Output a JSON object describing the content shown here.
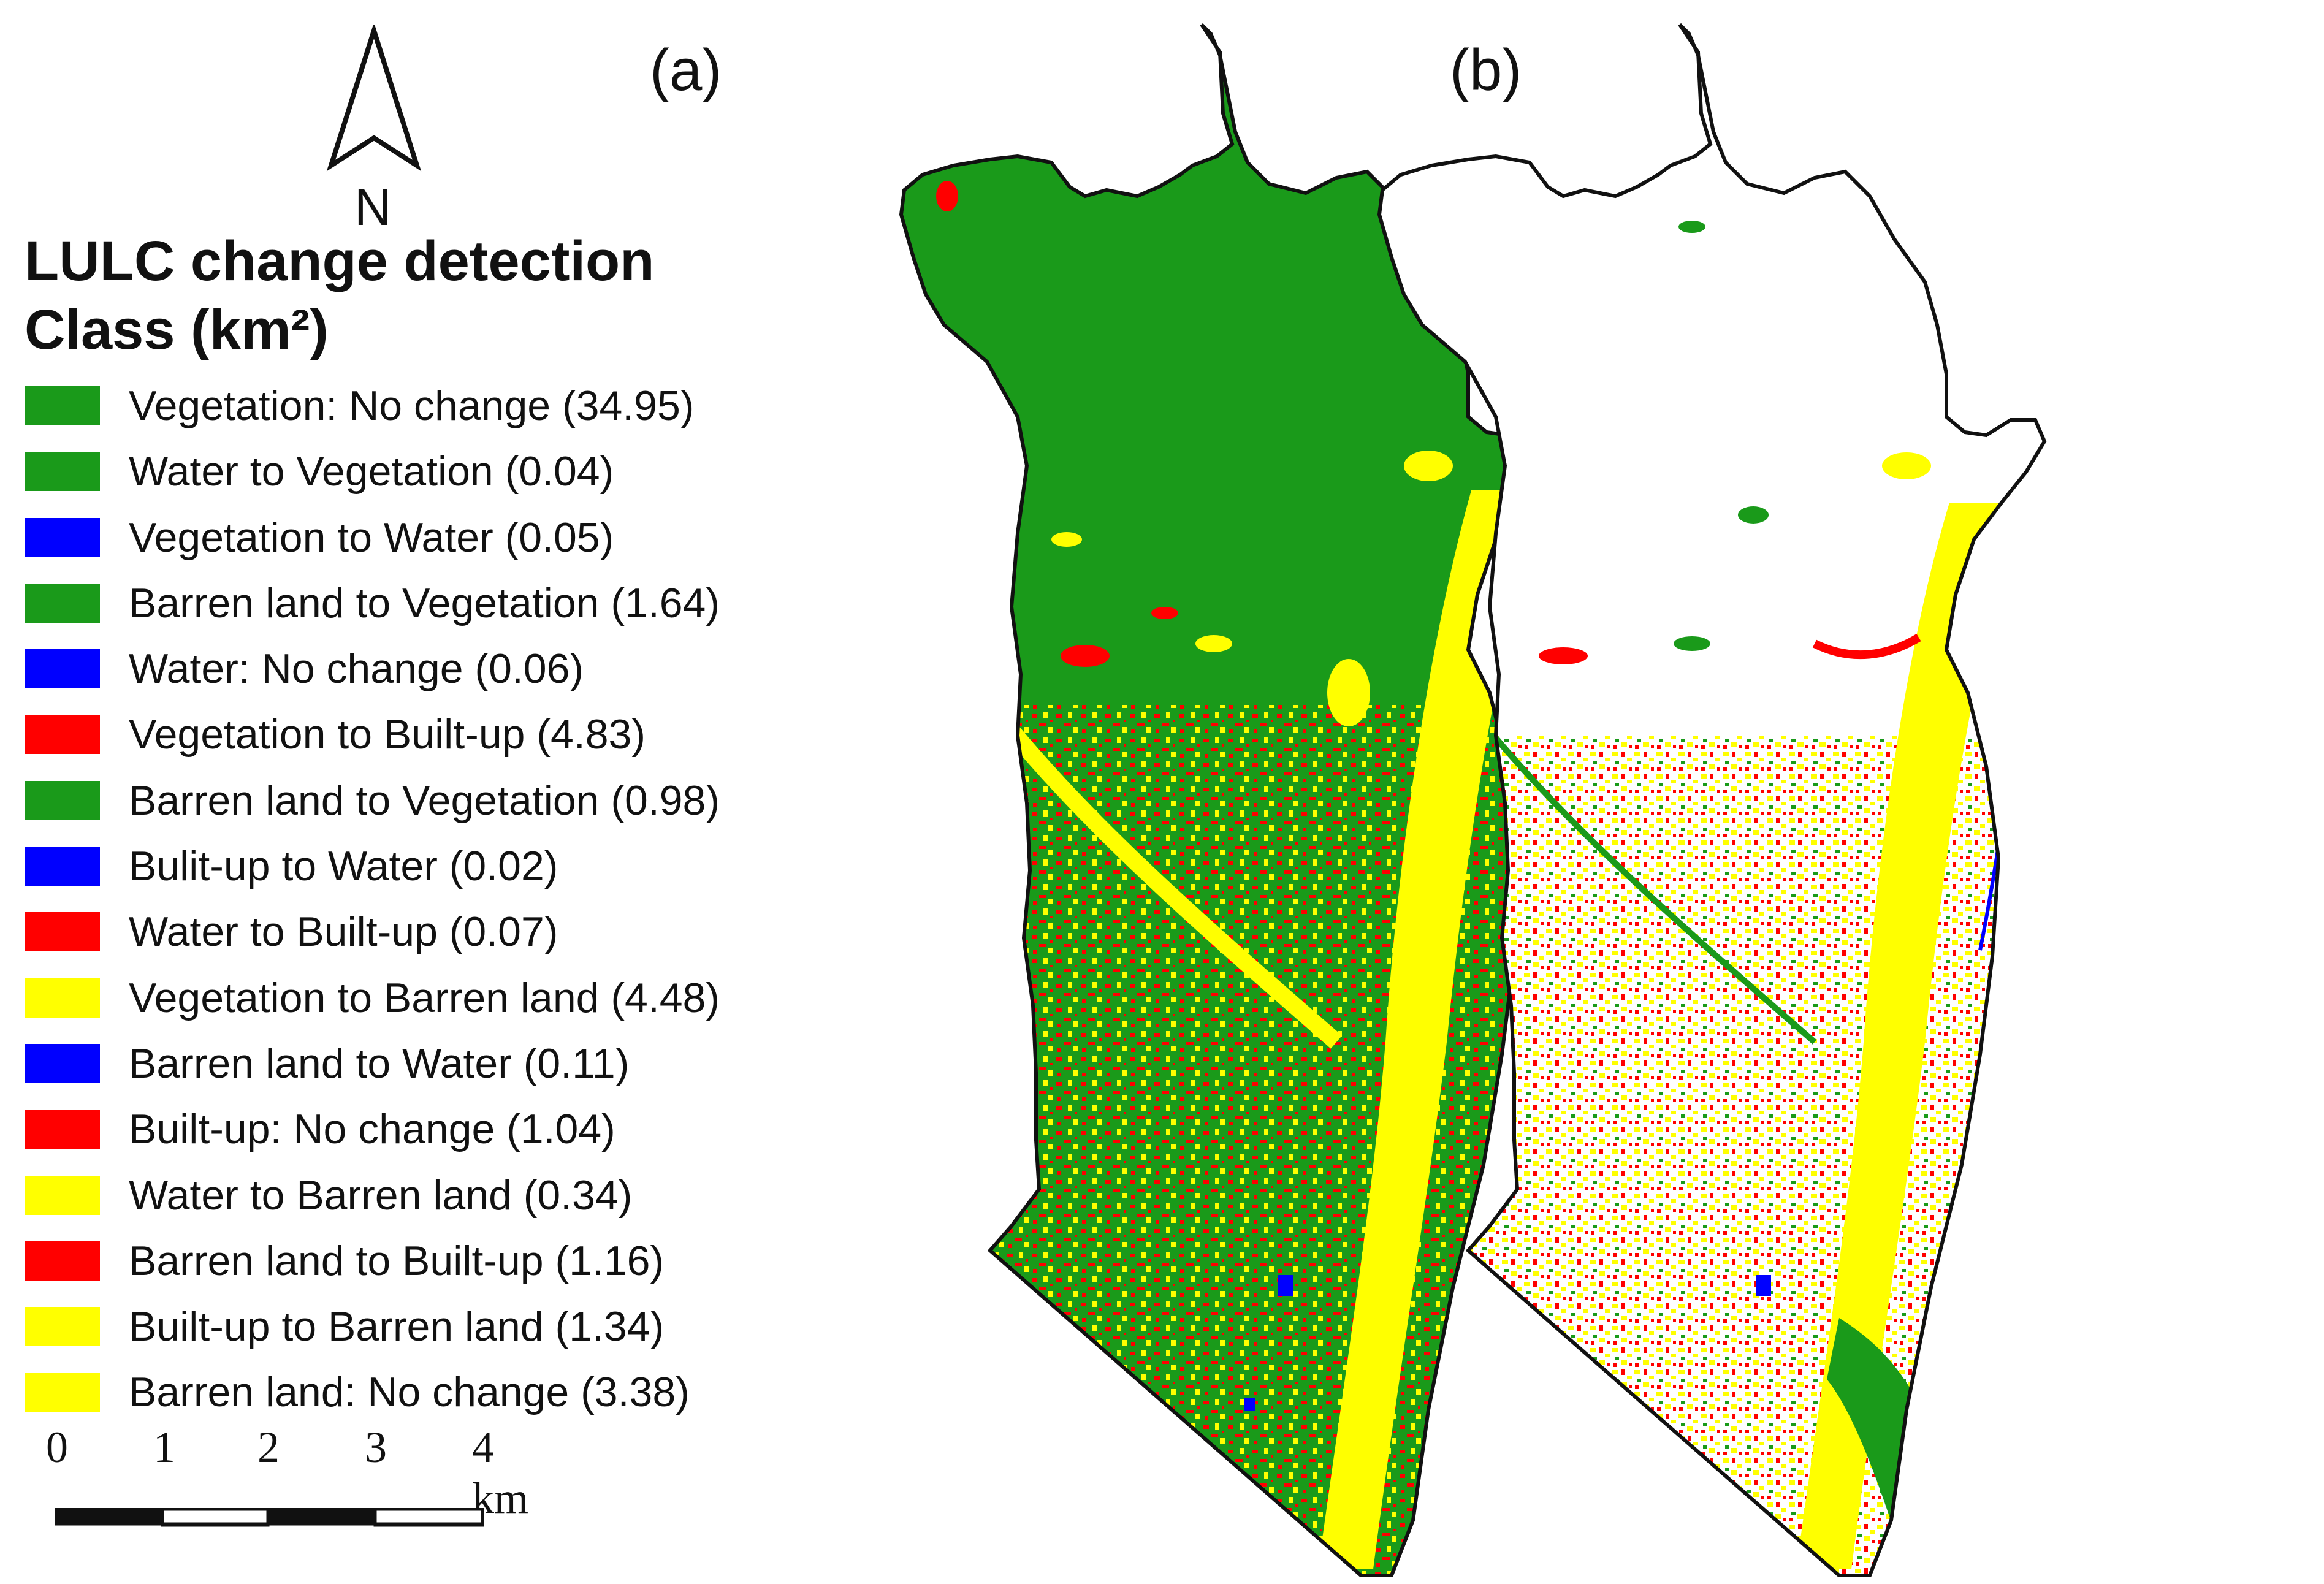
{
  "north_arrow": {
    "label": "N"
  },
  "legend": {
    "title_line1": "LULC change detection",
    "title_line2": "Class (km²)",
    "items": [
      {
        "label": "Vegetation: No change (34.95)",
        "color": "#1a9a1a"
      },
      {
        "label": "Water to Vegetation (0.04)",
        "color": "#1a9a1a"
      },
      {
        "label": "Vegetation to Water (0.05)",
        "color": "#0000ff"
      },
      {
        "label": "Barren land to Vegetation (1.64)",
        "color": "#1a9a1a"
      },
      {
        "label": "Water: No change (0.06)",
        "color": "#0000ff"
      },
      {
        "label": "Vegetation to Built-up (4.83)",
        "color": "#ff0000"
      },
      {
        "label": "Barren land to Vegetation (0.98)",
        "color": "#1a9a1a"
      },
      {
        "label": "Bulit-up to Water (0.02)",
        "color": "#0000ff"
      },
      {
        "label": "Water to Built-up (0.07)",
        "color": "#ff0000"
      },
      {
        "label": "Vegetation to Barren land (4.48)",
        "color": "#ffff00"
      },
      {
        "label": "Barren land to Water (0.11)",
        "color": "#0000ff"
      },
      {
        "label": "Built-up: No change (1.04)",
        "color": "#ff0000"
      },
      {
        "label": "Water to Barren land (0.34)",
        "color": "#ffff00"
      },
      {
        "label": "Barren land to Built-up (1.16)",
        "color": "#ff0000"
      },
      {
        "label": "Built-up to Barren land (1.34)",
        "color": "#ffff00"
      },
      {
        "label": "Barren land: No change (3.38)",
        "color": "#ffff00"
      }
    ]
  },
  "scale_bar": {
    "ticks": [
      "0",
      "1",
      "2",
      "3",
      "4 km"
    ]
  },
  "panels": [
    {
      "label": "(a)"
    },
    {
      "label": "(b)"
    }
  ],
  "colors": {
    "vegetation": "#1a9a1a",
    "water": "#0000ff",
    "built_up": "#ff0000",
    "barren": "#ffff00"
  }
}
